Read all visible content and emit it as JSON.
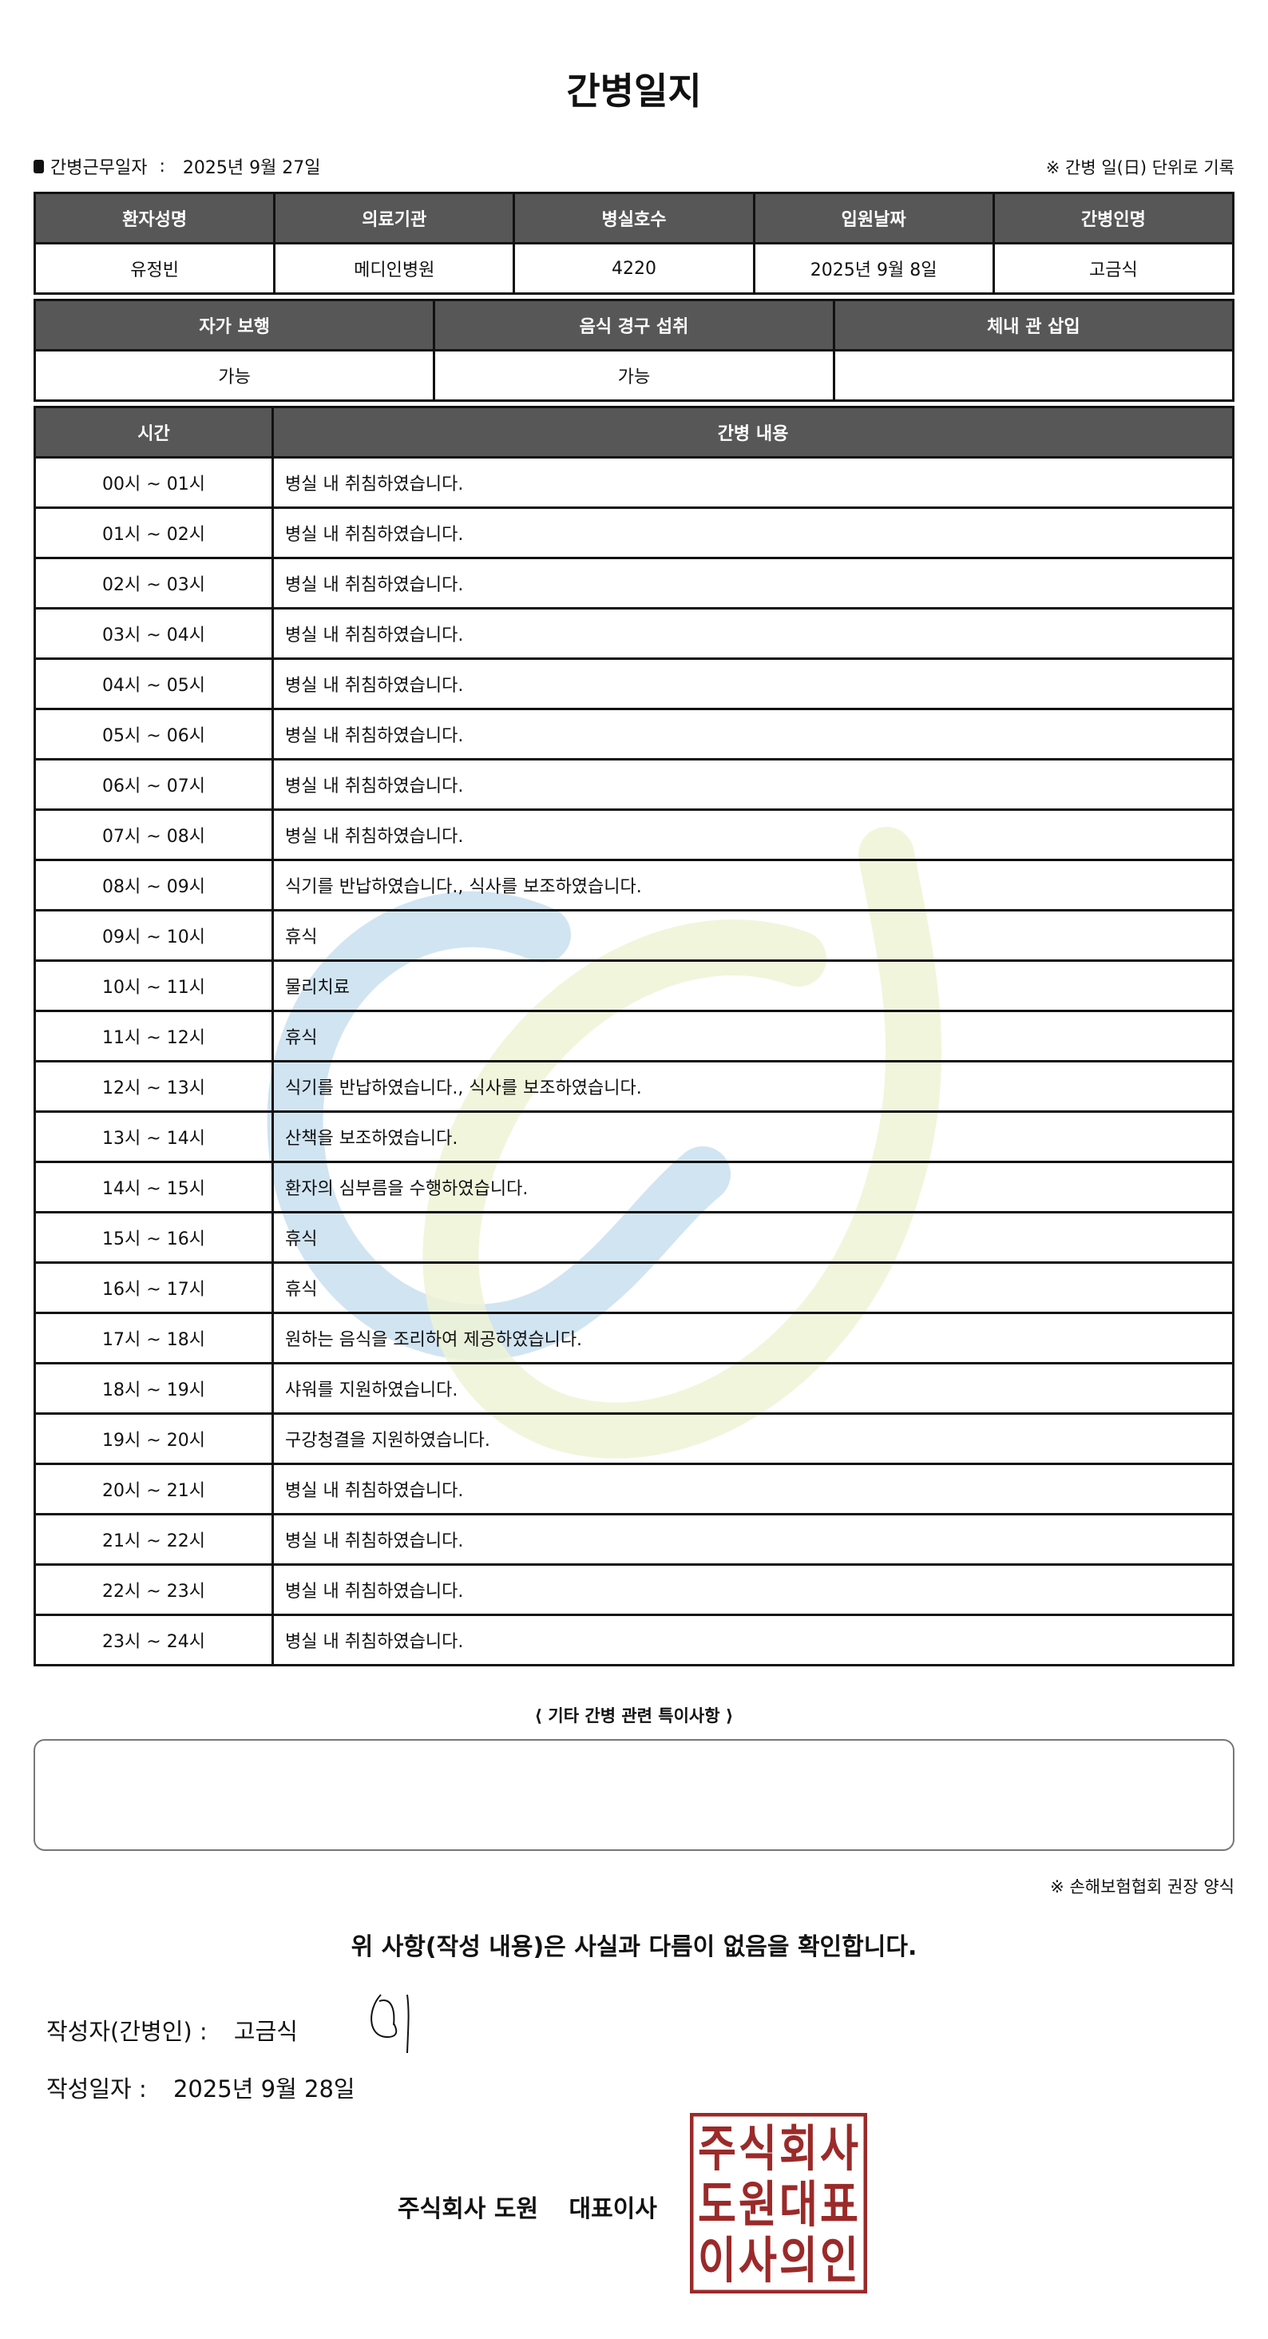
{
  "title": "간병일지",
  "work_date_label": "간병근무일자",
  "work_date": "2025년 9월 27일",
  "unit_note": "※ 간병 일(日) 단위로 기록",
  "patient_table": {
    "headers": [
      "환자성명",
      "의료기관",
      "병실호수",
      "입원날짜",
      "간병인명"
    ],
    "values": [
      "유정빈",
      "메디인병원",
      "4220",
      "2025년 9월 8일",
      "고금식"
    ]
  },
  "status_table": {
    "headers": [
      "자가 보행",
      "음식 경구 섭취",
      "체내 관 삽입"
    ],
    "values": [
      "가능",
      "가능",
      ""
    ]
  },
  "log_table": {
    "headers": [
      "시간",
      "간병 내용"
    ],
    "rows": [
      {
        "time": "00시 ~ 01시",
        "content": "병실 내 취침하였습니다."
      },
      {
        "time": "01시 ~ 02시",
        "content": "병실 내 취침하였습니다."
      },
      {
        "time": "02시 ~ 03시",
        "content": "병실 내 취침하였습니다."
      },
      {
        "time": "03시 ~ 04시",
        "content": "병실 내 취침하였습니다."
      },
      {
        "time": "04시 ~ 05시",
        "content": "병실 내 취침하였습니다."
      },
      {
        "time": "05시 ~ 06시",
        "content": "병실 내 취침하였습니다."
      },
      {
        "time": "06시 ~ 07시",
        "content": "병실 내 취침하였습니다."
      },
      {
        "time": "07시 ~ 08시",
        "content": "병실 내 취침하였습니다."
      },
      {
        "time": "08시 ~ 09시",
        "content": "식기를 반납하였습니다., 식사를 보조하였습니다."
      },
      {
        "time": "09시 ~ 10시",
        "content": "휴식"
      },
      {
        "time": "10시 ~ 11시",
        "content": "물리치료"
      },
      {
        "time": "11시 ~ 12시",
        "content": "휴식"
      },
      {
        "time": "12시 ~ 13시",
        "content": "식기를 반납하였습니다., 식사를 보조하였습니다."
      },
      {
        "time": "13시 ~ 14시",
        "content": "산책을 보조하였습니다."
      },
      {
        "time": "14시 ~ 15시",
        "content": "환자의 심부름을 수행하였습니다."
      },
      {
        "time": "15시 ~ 16시",
        "content": "휴식"
      },
      {
        "time": "16시 ~ 17시",
        "content": "휴식"
      },
      {
        "time": "17시 ~ 18시",
        "content": "원하는 음식을 조리하여 제공하였습니다."
      },
      {
        "time": "18시 ~ 19시",
        "content": "샤워를 지원하였습니다."
      },
      {
        "time": "19시 ~ 20시",
        "content": "구강청결을 지원하였습니다."
      },
      {
        "time": "20시 ~ 21시",
        "content": "병실 내 취침하였습니다."
      },
      {
        "time": "21시 ~ 22시",
        "content": "병실 내 취침하였습니다."
      },
      {
        "time": "22시 ~ 23시",
        "content": "병실 내 취침하였습니다."
      },
      {
        "time": "23시 ~ 24시",
        "content": "병실 내 취침하였습니다."
      }
    ]
  },
  "remarks_label": "⟨ 기타 간병 관련 특이사항 ⟩",
  "remarks": "",
  "form_note": "※ 손해보험협회 권장 양식",
  "confirm_text": "위 사항(작성 내용)은 사실과 다름이 없음을 확인합니다.",
  "author_label": "작성자(간병인) :",
  "author": "고금식",
  "written_date_label": "작성일자 :",
  "written_date": "2025년 9월 28일",
  "company": "주식회사 도원",
  "ceo_title": "대표이사",
  "seal_text": "주식회사도원대표이사의인",
  "colors": {
    "header_bg": "#575757",
    "seal": "#9b2a2a",
    "watermark_blue": "#c9dff0",
    "watermark_green": "#eef3d6"
  }
}
